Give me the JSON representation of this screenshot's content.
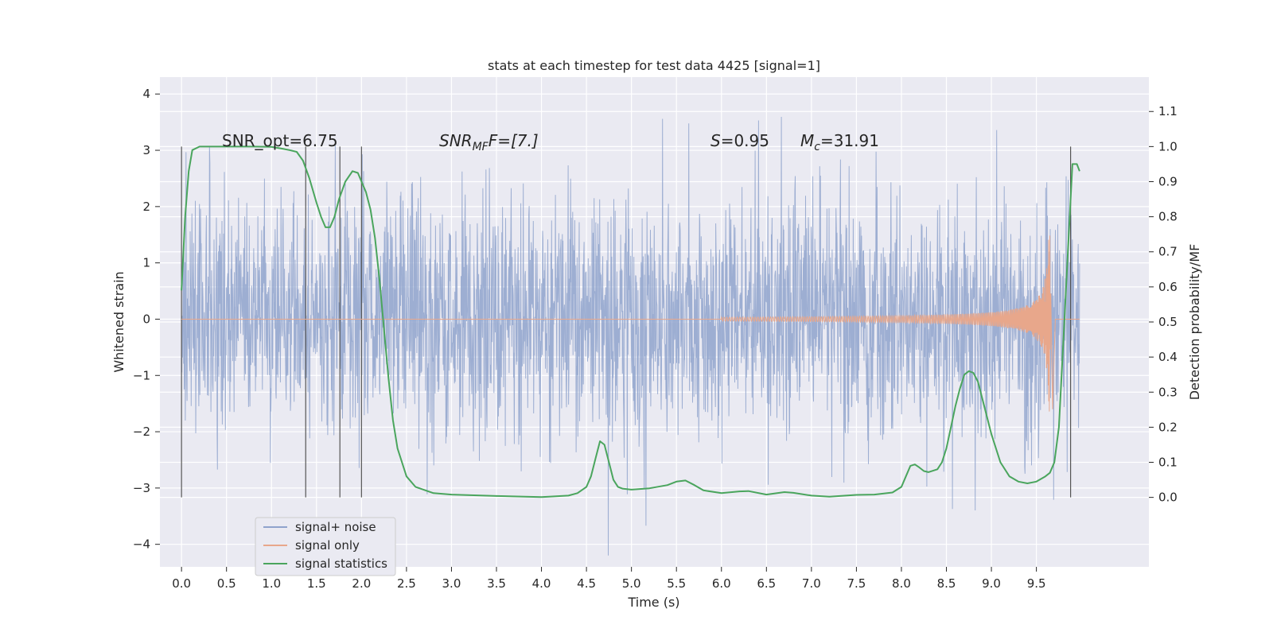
{
  "chart_data": {
    "type": "line",
    "title": "stats at each timestep for test data 4425 [signal=1]",
    "xlabel": "Time (s)",
    "ylabel": "Whitened strain",
    "y2label": "Detection probability/MF",
    "xlim": [
      -0.24,
      10.75
    ],
    "ylim": [
      -4.4,
      4.3
    ],
    "y2lim": [
      -0.198,
      1.198
    ],
    "grid": true,
    "legend_position": "lower-left",
    "x_ticks": [
      "0.0",
      "0.5",
      "1.0",
      "1.5",
      "2.0",
      "2.5",
      "3.0",
      "3.5",
      "4.0",
      "4.5",
      "5.0",
      "5.5",
      "6.0",
      "6.5",
      "7.0",
      "7.5",
      "8.0",
      "8.5",
      "9.0",
      "9.5"
    ],
    "y_ticks": [
      "4",
      "3",
      "2",
      "1",
      "0",
      "−1",
      "−2",
      "−3",
      "−4"
    ],
    "y2_ticks": [
      "1.1",
      "1.0",
      "0.9",
      "0.8",
      "0.7",
      "0.6",
      "0.5",
      "0.4",
      "0.3",
      "0.2",
      "0.1",
      "0.0"
    ],
    "annotations": {
      "snr_opt": "SNR_opt=6.75",
      "snr_mf_main": "SNR",
      "snr_mf_sub": "MF",
      "snr_mf_value": "F=[7.]",
      "s_var": "S",
      "s_value": "=0.95",
      "mc_main": "M",
      "mc_sub": "c",
      "mc_value": "=31.91"
    },
    "vertical_markers": [
      0.0,
      1.38,
      1.76,
      2.0,
      9.88
    ],
    "series": [
      {
        "name": "signal+ noise",
        "color": "#8fa3cc",
        "description_values": "dense noise, approx Gaussian sigma~1, range about -4.2 to 3.9 over t=0..9.98 s"
      },
      {
        "name": "signal only",
        "color": "#e8a78b",
        "chirp": {
          "start": 6.0,
          "merger": 9.66,
          "end": 9.98,
          "peak_amplitude": 1.75
        }
      },
      {
        "name": "signal statistics",
        "color": "#4aa55d",
        "x": [
          0.0,
          0.04,
          0.08,
          0.12,
          0.2,
          0.3,
          0.5,
          0.8,
          1.0,
          1.1,
          1.2,
          1.28,
          1.35,
          1.42,
          1.5,
          1.55,
          1.6,
          1.65,
          1.7,
          1.75,
          1.82,
          1.9,
          1.96,
          2.0,
          2.05,
          2.1,
          2.15,
          2.2,
          2.25,
          2.3,
          2.35,
          2.4,
          2.5,
          2.6,
          2.8,
          3.0,
          3.5,
          4.0,
          4.3,
          4.4,
          4.5,
          4.55,
          4.6,
          4.65,
          4.7,
          4.75,
          4.8,
          4.85,
          4.9,
          5.0,
          5.2,
          5.4,
          5.5,
          5.6,
          5.7,
          5.8,
          6.0,
          6.2,
          6.3,
          6.5,
          6.7,
          6.8,
          7.0,
          7.2,
          7.5,
          7.7,
          7.9,
          8.0,
          8.05,
          8.1,
          8.15,
          8.2,
          8.25,
          8.3,
          8.4,
          8.45,
          8.5,
          8.55,
          8.6,
          8.65,
          8.7,
          8.75,
          8.8,
          8.85,
          8.9,
          9.0,
          9.1,
          9.2,
          9.3,
          9.4,
          9.5,
          9.6,
          9.65,
          9.7,
          9.75,
          9.8,
          9.85,
          9.9,
          9.95,
          9.98
        ],
        "values": [
          0.59,
          0.8,
          0.93,
          0.99,
          1.0,
          1.0,
          1.0,
          1.0,
          0.999,
          0.995,
          0.99,
          0.985,
          0.96,
          0.91,
          0.84,
          0.8,
          0.77,
          0.77,
          0.8,
          0.85,
          0.9,
          0.93,
          0.925,
          0.9,
          0.87,
          0.82,
          0.74,
          0.62,
          0.48,
          0.34,
          0.22,
          0.14,
          0.06,
          0.03,
          0.012,
          0.008,
          0.004,
          0.001,
          0.005,
          0.012,
          0.03,
          0.06,
          0.11,
          0.16,
          0.15,
          0.1,
          0.05,
          0.03,
          0.025,
          0.022,
          0.026,
          0.035,
          0.045,
          0.048,
          0.035,
          0.02,
          0.012,
          0.017,
          0.018,
          0.008,
          0.015,
          0.013,
          0.005,
          0.002,
          0.007,
          0.008,
          0.014,
          0.03,
          0.06,
          0.09,
          0.094,
          0.085,
          0.075,
          0.072,
          0.08,
          0.1,
          0.14,
          0.2,
          0.26,
          0.31,
          0.35,
          0.36,
          0.355,
          0.33,
          0.28,
          0.18,
          0.1,
          0.06,
          0.045,
          0.04,
          0.045,
          0.06,
          0.07,
          0.1,
          0.2,
          0.45,
          0.7,
          0.95,
          0.95,
          0.93
        ]
      }
    ]
  }
}
